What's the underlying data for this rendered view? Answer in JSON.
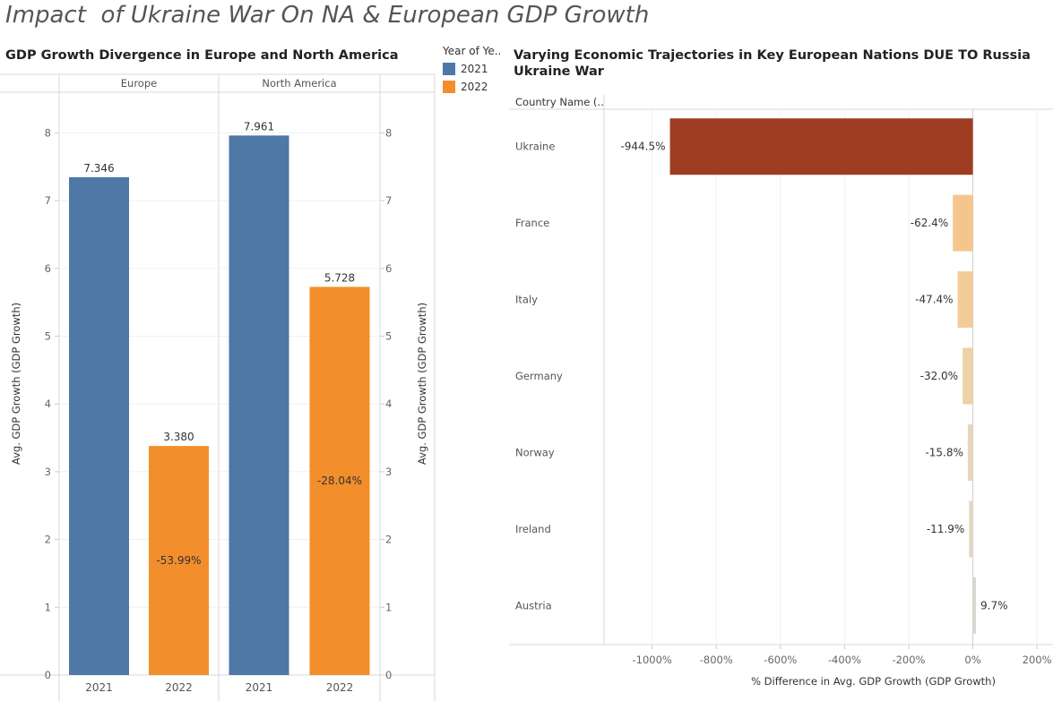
{
  "dashboard_title": "Impact  of Ukraine War On NA & European GDP Growth",
  "legend": {
    "title": "Year of Ye..",
    "items": [
      {
        "label": "2021",
        "color": "#4e79a7"
      },
      {
        "label": "2022",
        "color": "#f28e2b"
      }
    ]
  },
  "chart_data": [
    {
      "type": "bar",
      "title": "GDP Growth Divergence in Europe and North America",
      "ylabel": "Avg. GDP Growth (GDP Growth)",
      "ylim": [
        0,
        8.6
      ],
      "yticks": [
        0,
        1,
        2,
        3,
        4,
        5,
        6,
        7,
        8
      ],
      "panels": [
        {
          "name": "Europe",
          "bars": [
            {
              "year": "2021",
              "value": 7.346,
              "label": "7.346",
              "pct": ""
            },
            {
              "year": "2022",
              "value": 3.38,
              "label": "3.380",
              "pct": "-53.99%"
            }
          ]
        },
        {
          "name": "North America",
          "bars": [
            {
              "year": "2021",
              "value": 7.961,
              "label": "7.961",
              "pct": ""
            },
            {
              "year": "2022",
              "value": 5.728,
              "label": "5.728",
              "pct": "-28.04%"
            }
          ]
        }
      ]
    },
    {
      "type": "bar",
      "orientation": "horizontal",
      "title": "Varying Economic Trajectories in Key European Nations DUE TO Russia Ukraine War",
      "row_header": "Country Name (..",
      "xlabel": "% Difference in Avg. GDP Growth (GDP Growth)",
      "xlim": [
        -1150,
        250
      ],
      "xticks": [
        -1000,
        -800,
        -600,
        -400,
        -200,
        0,
        200
      ],
      "xtick_labels": [
        "-1000%",
        "-800%",
        "-600%",
        "-400%",
        "-200%",
        "0%",
        "200%"
      ],
      "rows": [
        {
          "country": "Ukraine",
          "value": -944.5,
          "label": "-944.5%",
          "color": "#9e3d22"
        },
        {
          "country": "France",
          "value": -62.4,
          "label": "-62.4%",
          "color": "#f4c68e"
        },
        {
          "country": "Italy",
          "value": -47.4,
          "label": "-47.4%",
          "color": "#f1cc98"
        },
        {
          "country": "Germany",
          "value": -32.0,
          "label": "-32.0%",
          "color": "#ecd2a7"
        },
        {
          "country": "Norway",
          "value": -15.8,
          "label": "-15.8%",
          "color": "#e6d5bd"
        },
        {
          "country": "Ireland",
          "value": -11.9,
          "label": "-11.9%",
          "color": "#e4d7c4"
        },
        {
          "country": "Austria",
          "value": 9.7,
          "label": "9.7%",
          "color": "#d7d9d0"
        }
      ]
    }
  ]
}
